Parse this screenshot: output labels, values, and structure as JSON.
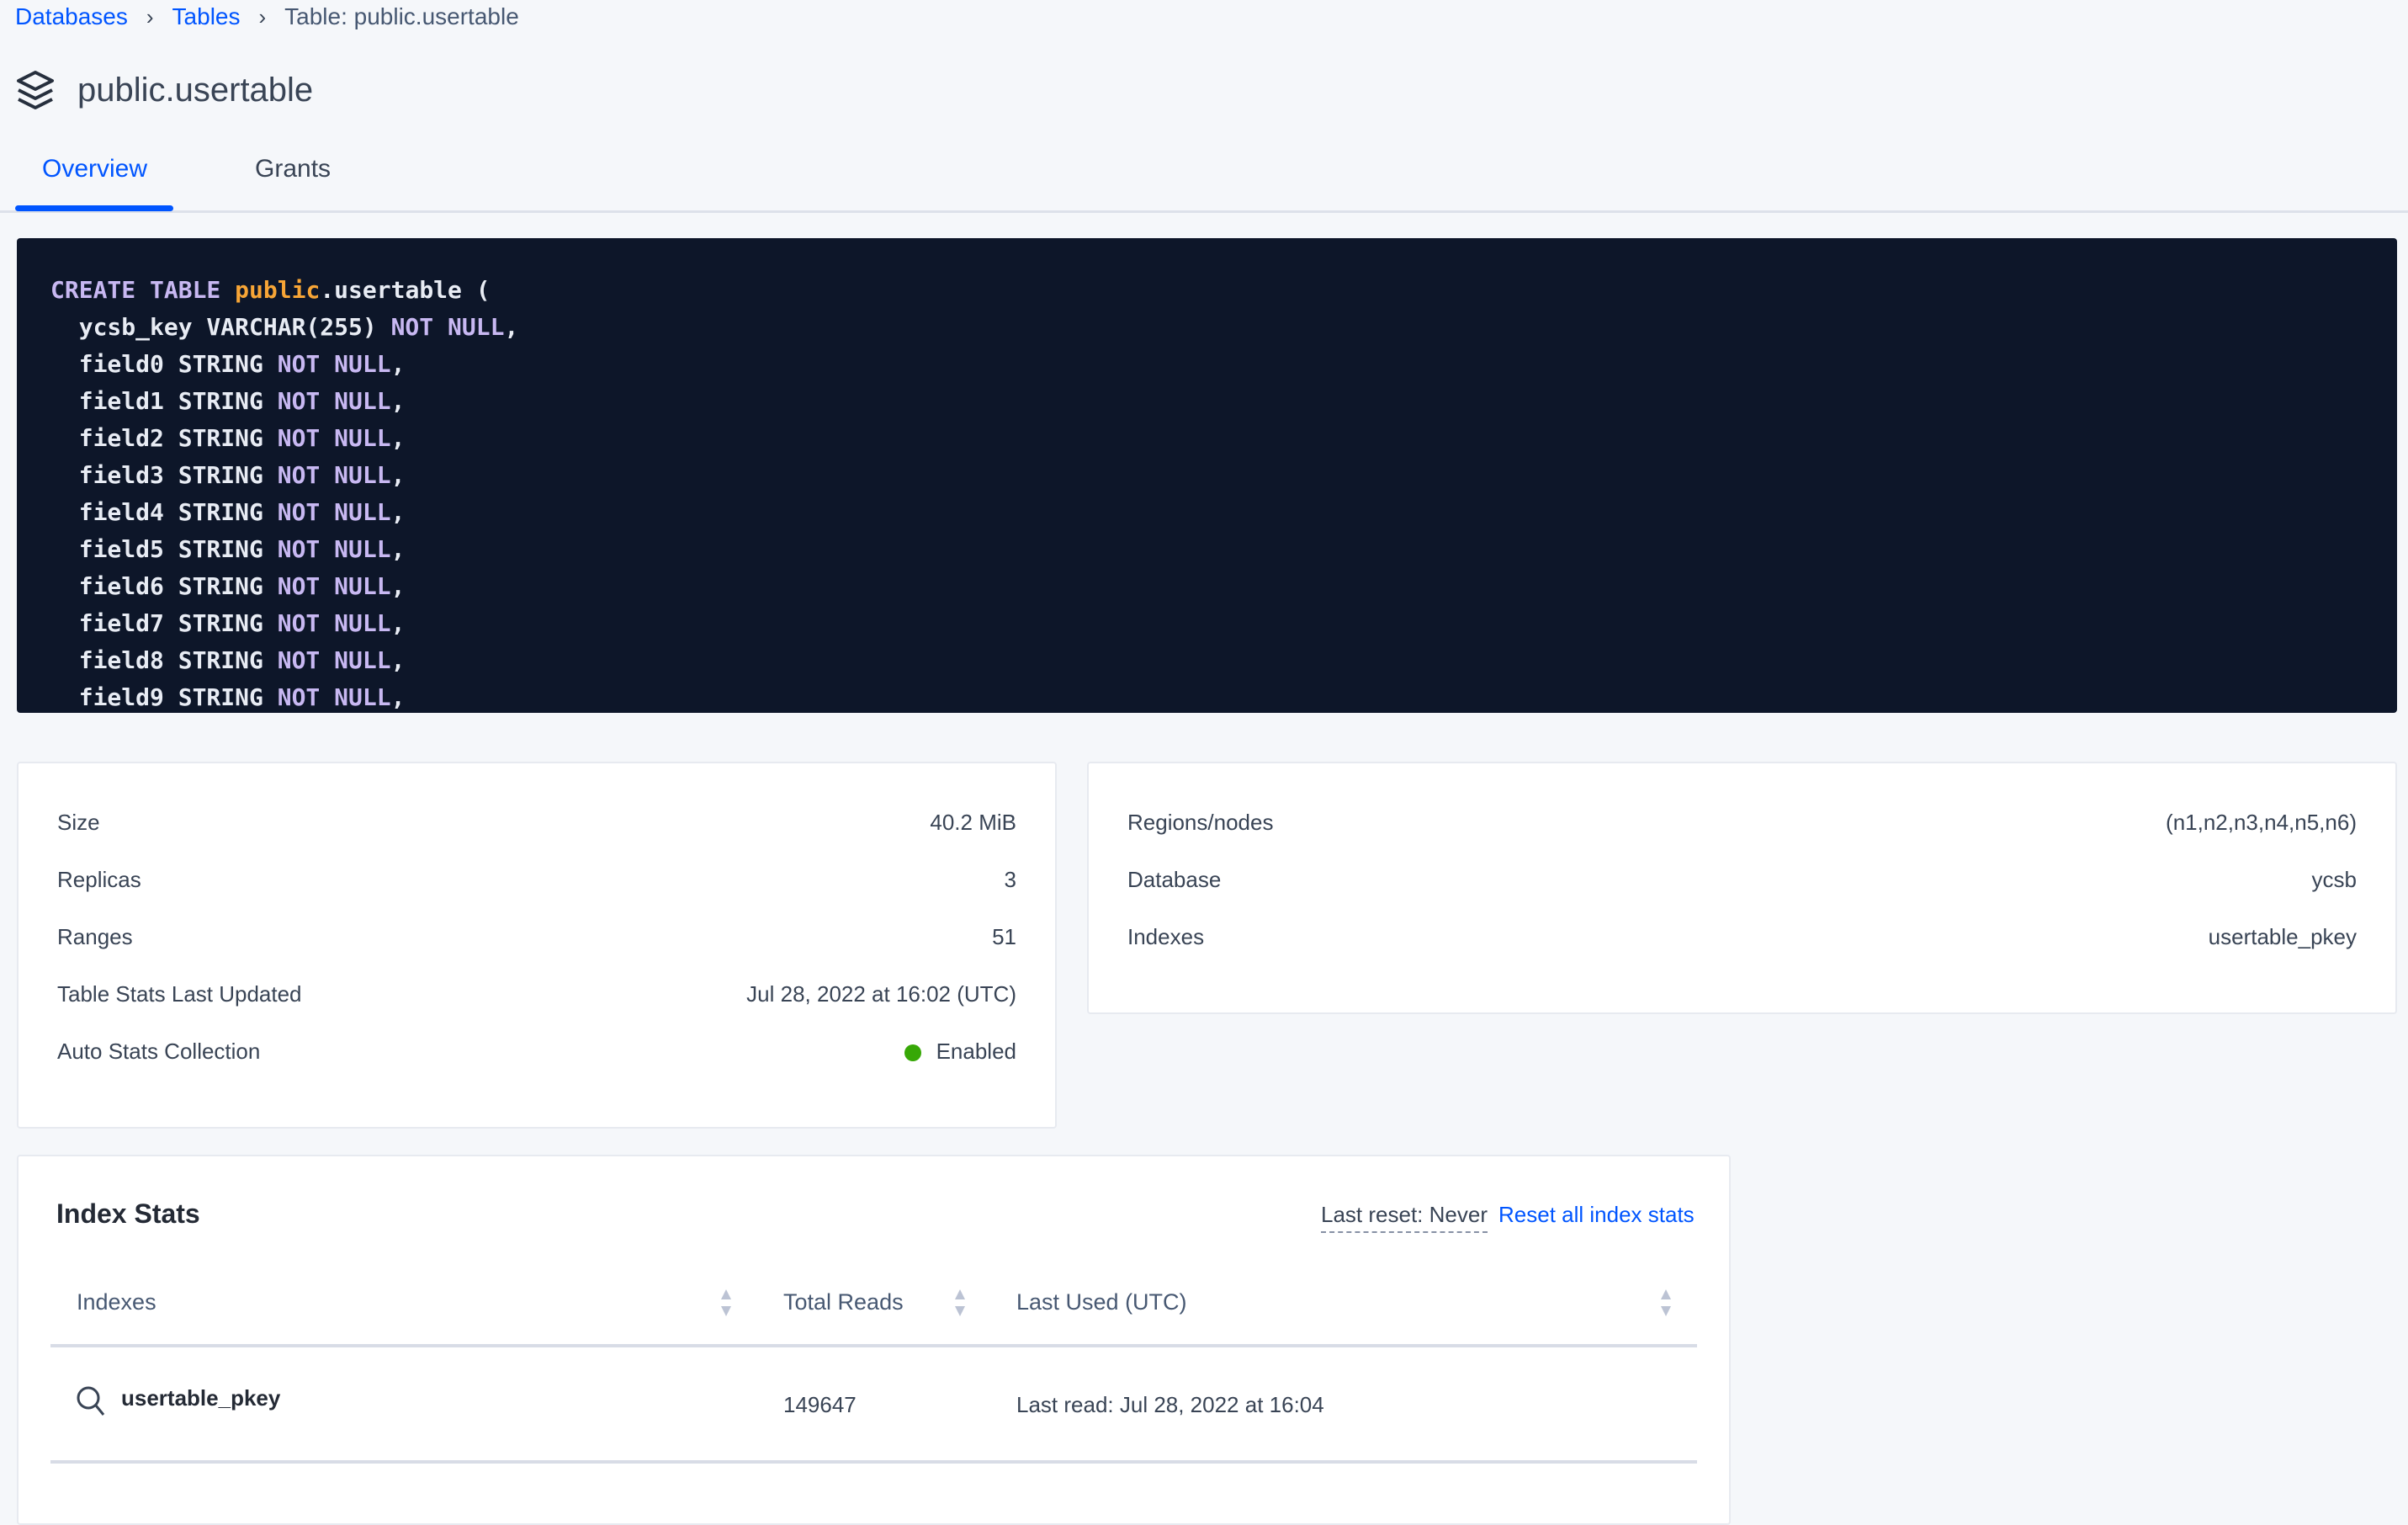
{
  "breadcrumb": {
    "items": [
      {
        "label": "Databases"
      },
      {
        "label": "Tables"
      }
    ],
    "current": "Table: public.usertable"
  },
  "header": {
    "title": "public.usertable",
    "icon": "layers-icon"
  },
  "tabs": [
    {
      "label": "Overview",
      "active": true
    },
    {
      "label": "Grants",
      "active": false
    }
  ],
  "code": {
    "lines": [
      {
        "kw1": "CREATE TABLE",
        "schema": "public",
        "rest": ".usertable ("
      },
      {
        "text": "  ycsb_key VARCHAR(255) ",
        "kw": "NOT NULL",
        "end": ","
      },
      {
        "text": "  field0 STRING ",
        "kw": "NOT NULL",
        "end": ","
      },
      {
        "text": "  field1 STRING ",
        "kw": "NOT NULL",
        "end": ","
      },
      {
        "text": "  field2 STRING ",
        "kw": "NOT NULL",
        "end": ","
      },
      {
        "text": "  field3 STRING ",
        "kw": "NOT NULL",
        "end": ","
      },
      {
        "text": "  field4 STRING ",
        "kw": "NOT NULL",
        "end": ","
      },
      {
        "text": "  field5 STRING ",
        "kw": "NOT NULL",
        "end": ","
      },
      {
        "text": "  field6 STRING ",
        "kw": "NOT NULL",
        "end": ","
      },
      {
        "text": "  field7 STRING ",
        "kw": "NOT NULL",
        "end": ","
      },
      {
        "text": "  field8 STRING ",
        "kw": "NOT NULL",
        "end": ","
      },
      {
        "text": "  field9 STRING ",
        "kw": "NOT NULL",
        "end": ","
      }
    ]
  },
  "stats_left": [
    {
      "label": "Size",
      "value": "40.2 MiB"
    },
    {
      "label": "Replicas",
      "value": "3"
    },
    {
      "label": "Ranges",
      "value": "51"
    },
    {
      "label": "Table Stats Last Updated",
      "value": "Jul 28, 2022 at 16:02 (UTC)"
    },
    {
      "label": "Auto Stats Collection",
      "value": "Enabled",
      "status_color": "#37a806"
    }
  ],
  "stats_right": [
    {
      "label": "Regions/nodes",
      "value": "(n1,n2,n3,n4,n5,n6)"
    },
    {
      "label": "Database",
      "value": "ycsb"
    },
    {
      "label": "Indexes",
      "value": "usertable_pkey"
    }
  ],
  "index_stats": {
    "title": "Index Stats",
    "last_reset": "Last reset: Never",
    "reset_link": "Reset all index stats",
    "columns": [
      "Indexes",
      "Total Reads",
      "Last Used (UTC)"
    ],
    "rows": [
      {
        "index": "usertable_pkey",
        "total_reads": "149647",
        "last_used": "Last read: Jul 28, 2022 at 16:04"
      }
    ]
  },
  "colors": {
    "accent": "#0055ff",
    "code_bg": "#0d1629",
    "keyword": "#c8b8f2",
    "schema": "#f7a536"
  }
}
